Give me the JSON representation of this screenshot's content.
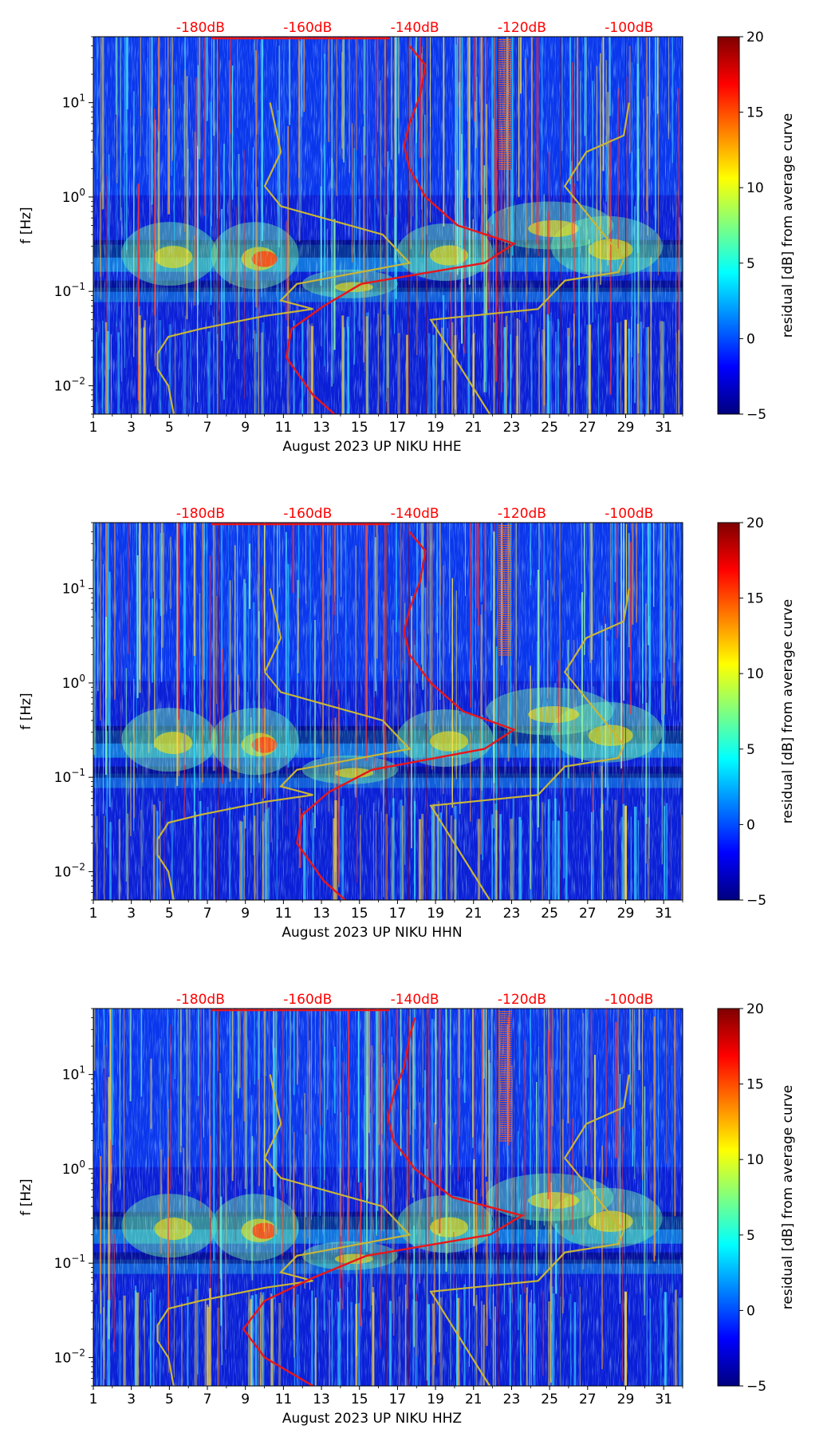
{
  "figure": {
    "colorbar": {
      "label": "residual [dB] from average curve",
      "ticks": [
        20,
        15,
        10,
        5,
        0,
        -5
      ],
      "tick_labels": [
        "20",
        "15",
        "10",
        "5",
        "0",
        "−5"
      ],
      "range": [
        -5,
        20
      ],
      "colormap": "jet",
      "colors": [
        "#00007f",
        "#0000ff",
        "#007fff",
        "#00ffff",
        "#7fff7f",
        "#ffff00",
        "#ff7f00",
        "#ff0000",
        "#7f0000"
      ]
    },
    "xticks": [
      1,
      3,
      5,
      7,
      9,
      11,
      13,
      15,
      17,
      19,
      21,
      23,
      25,
      27,
      29,
      31
    ],
    "xtick_labels": [
      "1",
      "3",
      "5",
      "7",
      "9",
      "11",
      "13",
      "15",
      "17",
      "19",
      "21",
      "23",
      "25",
      "27",
      "29",
      "31"
    ],
    "xlim": [
      1,
      32
    ],
    "ylabel": "f [Hz]",
    "ylim": [
      0.005,
      50
    ],
    "yscale": "log",
    "ytick_labels": [
      {
        "base": "10",
        "exp": "1",
        "value": 10
      },
      {
        "base": "10",
        "exp": "0",
        "value": 1
      },
      {
        "base": "10",
        "exp": "−1",
        "value": 0.1
      },
      {
        "base": "10",
        "exp": "−2",
        "value": 0.01
      }
    ],
    "top_axis": {
      "labels": [
        "-180dB",
        "-160dB",
        "-140dB",
        "-120dB",
        "-100dB"
      ],
      "values_db": [
        -180,
        -160,
        -140,
        -120,
        -100
      ],
      "color": "#ff0000"
    },
    "line_colors": {
      "average_curve": "#e8161b",
      "reference_curves": "#c9b637"
    }
  },
  "chart_data": [
    {
      "type": "heatmap",
      "xlabel": "August 2023 UP NIKU  HHE",
      "overlay": {
        "average_psd_db_vs_freq": [
          [
            -141,
            40
          ],
          [
            -138,
            25
          ],
          [
            -139,
            12
          ],
          [
            -141,
            6
          ],
          [
            -142,
            3.5
          ],
          [
            -141,
            2
          ],
          [
            -138,
            1
          ],
          [
            -132,
            0.5
          ],
          [
            -121.5,
            0.32
          ],
          [
            -127,
            0.2
          ],
          [
            -150,
            0.12
          ],
          [
            -157,
            0.07
          ],
          [
            -163,
            0.04
          ],
          [
            -164,
            0.02
          ],
          [
            -159,
            0.008
          ],
          [
            -155,
            0.005
          ]
        ],
        "model_high_db_vs_freq": [
          [
            -100,
            10
          ],
          [
            -101,
            4.5
          ],
          [
            -108,
            3
          ],
          [
            -112,
            1.3
          ],
          [
            -101,
            0.22
          ],
          [
            -102,
            0.16
          ],
          [
            -112,
            0.13
          ],
          [
            -117,
            0.065
          ],
          [
            -137,
            0.05
          ],
          [
            -126,
            0.005
          ]
        ],
        "model_low_db_vs_freq": [
          [
            -167,
            10
          ],
          [
            -165,
            3
          ],
          [
            -168,
            1.3
          ],
          [
            -165,
            0.8
          ],
          [
            -146,
            0.4
          ],
          [
            -141,
            0.2
          ],
          [
            -162,
            0.12
          ],
          [
            -165,
            0.08
          ],
          [
            -159,
            0.065
          ],
          [
            -168,
            0.055
          ],
          [
            -180,
            0.04
          ],
          [
            -186,
            0.033
          ],
          [
            -188,
            0.022
          ],
          [
            -188,
            0.015
          ],
          [
            -186,
            0.01
          ],
          [
            -185,
            0.005
          ]
        ]
      }
    },
    {
      "type": "heatmap",
      "xlabel": "August 2023 UP NIKU  HHN",
      "overlay": {
        "average_psd_db_vs_freq": [
          [
            -141,
            40
          ],
          [
            -138,
            25
          ],
          [
            -139,
            12
          ],
          [
            -141,
            6
          ],
          [
            -142,
            3.5
          ],
          [
            -141,
            2
          ],
          [
            -137,
            1
          ],
          [
            -131,
            0.5
          ],
          [
            -121.5,
            0.32
          ],
          [
            -127,
            0.2
          ],
          [
            -148,
            0.12
          ],
          [
            -156,
            0.07
          ],
          [
            -161,
            0.04
          ],
          [
            -162,
            0.02
          ],
          [
            -157,
            0.008
          ],
          [
            -153,
            0.005
          ]
        ],
        "model_high_db_vs_freq": [
          [
            -100,
            10
          ],
          [
            -101,
            4.5
          ],
          [
            -108,
            3
          ],
          [
            -112,
            1.3
          ],
          [
            -101,
            0.22
          ],
          [
            -102,
            0.16
          ],
          [
            -112,
            0.13
          ],
          [
            -117,
            0.065
          ],
          [
            -137,
            0.05
          ],
          [
            -126,
            0.005
          ]
        ],
        "model_low_db_vs_freq": [
          [
            -167,
            10
          ],
          [
            -165,
            3
          ],
          [
            -168,
            1.3
          ],
          [
            -165,
            0.8
          ],
          [
            -146,
            0.4
          ],
          [
            -141,
            0.2
          ],
          [
            -162,
            0.12
          ],
          [
            -165,
            0.08
          ],
          [
            -159,
            0.065
          ],
          [
            -168,
            0.055
          ],
          [
            -180,
            0.04
          ],
          [
            -186,
            0.033
          ],
          [
            -188,
            0.022
          ],
          [
            -188,
            0.015
          ],
          [
            -186,
            0.01
          ],
          [
            -185,
            0.005
          ]
        ]
      }
    },
    {
      "type": "heatmap",
      "xlabel": "August 2023 UP NIKU  HHZ",
      "overlay": {
        "average_psd_db_vs_freq": [
          [
            -140,
            40
          ],
          [
            -141,
            25
          ],
          [
            -142,
            12
          ],
          [
            -144,
            6
          ],
          [
            -145,
            3.5
          ],
          [
            -144,
            2
          ],
          [
            -140,
            1
          ],
          [
            -133,
            0.5
          ],
          [
            -120,
            0.32
          ],
          [
            -126,
            0.2
          ],
          [
            -149,
            0.12
          ],
          [
            -159,
            0.07
          ],
          [
            -168,
            0.04
          ],
          [
            -172,
            0.02
          ],
          [
            -168,
            0.01
          ],
          [
            -159,
            0.005
          ]
        ],
        "model_high_db_vs_freq": [
          [
            -100,
            10
          ],
          [
            -101,
            4.5
          ],
          [
            -108,
            3
          ],
          [
            -112,
            1.3
          ],
          [
            -101,
            0.22
          ],
          [
            -102,
            0.16
          ],
          [
            -112,
            0.13
          ],
          [
            -117,
            0.065
          ],
          [
            -137,
            0.05
          ],
          [
            -126,
            0.005
          ]
        ],
        "model_low_db_vs_freq": [
          [
            -167,
            10
          ],
          [
            -165,
            3
          ],
          [
            -168,
            1.3
          ],
          [
            -165,
            0.8
          ],
          [
            -146,
            0.4
          ],
          [
            -141,
            0.2
          ],
          [
            -162,
            0.12
          ],
          [
            -165,
            0.08
          ],
          [
            -159,
            0.065
          ],
          [
            -168,
            0.055
          ],
          [
            -180,
            0.04
          ],
          [
            -186,
            0.033
          ],
          [
            -188,
            0.022
          ],
          [
            -188,
            0.015
          ],
          [
            -186,
            0.01
          ],
          [
            -185,
            0.005
          ]
        ]
      }
    }
  ]
}
